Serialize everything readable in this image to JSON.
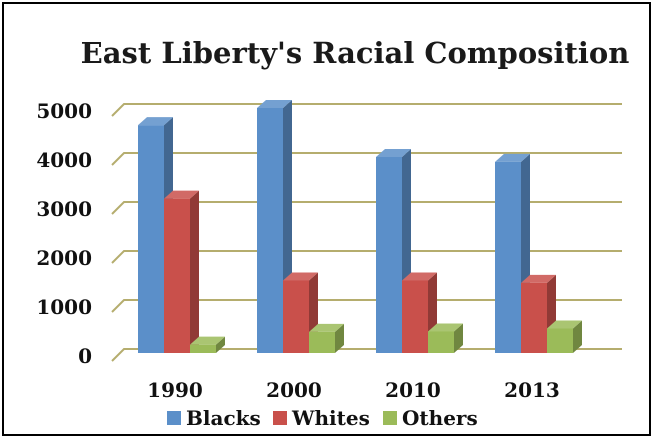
{
  "chart_data": {
    "type": "bar",
    "title": "East Liberty's Racial Composition",
    "xlabel": "",
    "ylabel": "",
    "categories": [
      "1990",
      "2000",
      "2010",
      "2013"
    ],
    "series": [
      {
        "name": "Blacks",
        "values": [
          4650,
          5000,
          4000,
          3900
        ],
        "color": "#5b8fc9"
      },
      {
        "name": "Whites",
        "values": [
          3150,
          1480,
          1480,
          1430
        ],
        "color": "#c9504b"
      },
      {
        "name": "Others",
        "values": [
          170,
          430,
          440,
          500
        ],
        "color": "#9bbb59"
      }
    ],
    "ylim": [
      0,
      5000
    ],
    "yticks": [
      0,
      1000,
      2000,
      3000,
      4000,
      5000
    ],
    "ytick_labels": [
      "0",
      "1000",
      "2000",
      "3000",
      "4000",
      "5000"
    ],
    "grid": true,
    "grid_color": "#b5ad6e",
    "legend_position": "bottom",
    "style": "3d-clustered-column"
  }
}
